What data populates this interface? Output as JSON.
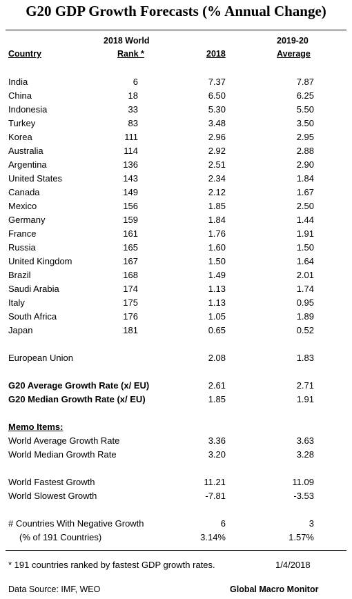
{
  "title": "G20 GDP Growth Forecasts  (% Annual Change)",
  "headers": {
    "rank_line1": "2018 World",
    "rank_line2": "Rank *",
    "country": "Country",
    "col2018": "2018",
    "avg_line1": "2019-20",
    "avg_line2": "Average"
  },
  "rows": [
    {
      "country": "India",
      "rank": "6",
      "y2018": "7.37",
      "avg": "7.87"
    },
    {
      "country": "China",
      "rank": "18",
      "y2018": "6.50",
      "avg": "6.25"
    },
    {
      "country": "Indonesia",
      "rank": "33",
      "y2018": "5.30",
      "avg": "5.50"
    },
    {
      "country": "Turkey",
      "rank": "83",
      "y2018": "3.48",
      "avg": "3.50"
    },
    {
      "country": "Korea",
      "rank": "111",
      "y2018": "2.96",
      "avg": "2.95"
    },
    {
      "country": "Australia",
      "rank": "114",
      "y2018": "2.92",
      "avg": "2.88"
    },
    {
      "country": "Argentina",
      "rank": "136",
      "y2018": "2.51",
      "avg": "2.90"
    },
    {
      "country": "United States",
      "rank": "143",
      "y2018": "2.34",
      "avg": "1.84"
    },
    {
      "country": "Canada",
      "rank": "149",
      "y2018": "2.12",
      "avg": "1.67"
    },
    {
      "country": "Mexico",
      "rank": "156",
      "y2018": "1.85",
      "avg": "2.50"
    },
    {
      "country": "Germany",
      "rank": "159",
      "y2018": "1.84",
      "avg": "1.44"
    },
    {
      "country": "France",
      "rank": "161",
      "y2018": "1.76",
      "avg": "1.91"
    },
    {
      "country": "Russia",
      "rank": "165",
      "y2018": "1.60",
      "avg": "1.50"
    },
    {
      "country": "United Kingdom",
      "rank": "167",
      "y2018": "1.50",
      "avg": "1.64"
    },
    {
      "country": "Brazil",
      "rank": "168",
      "y2018": "1.49",
      "avg": "2.01"
    },
    {
      "country": "Saudi Arabia",
      "rank": "174",
      "y2018": "1.13",
      "avg": "1.74"
    },
    {
      "country": "Italy",
      "rank": "175",
      "y2018": "1.13",
      "avg": "0.95"
    },
    {
      "country": "South Africa",
      "rank": "176",
      "y2018": "1.05",
      "avg": "1.89"
    },
    {
      "country": "Japan",
      "rank": "181",
      "y2018": "0.65",
      "avg": "0.52"
    }
  ],
  "eu": {
    "label": "European Union",
    "y2018": "2.08",
    "avg": "1.83"
  },
  "g20_avg": {
    "label": "G20 Average Growth Rate (x/ EU)",
    "y2018": "2.61",
    "avg": "2.71"
  },
  "g20_median": {
    "label": "G20 Median Growth Rate (x/ EU)",
    "y2018": "1.85",
    "avg": "1.91"
  },
  "memo_label": "Memo Items:",
  "world_avg": {
    "label": "World Average Growth Rate",
    "y2018": "3.36",
    "avg": "3.63"
  },
  "world_median": {
    "label": "World Median Growth Rate",
    "y2018": "3.20",
    "avg": "3.28"
  },
  "world_fastest": {
    "label": "World Fastest Growth",
    "y2018": "11.21",
    "avg": "11.09"
  },
  "world_slowest": {
    "label": "World Slowest Growth",
    "y2018": "-7.81",
    "avg": "-3.53"
  },
  "neg_count": {
    "label": "# Countries With Negative Growth",
    "y2018": "6",
    "avg": "3"
  },
  "neg_pct": {
    "label": "(% of 191 Countries)",
    "y2018": "3.14%",
    "avg": "1.57%"
  },
  "footnote": "* 191 countries ranked by fastest GDP growth rates.",
  "date": "1/4/2018",
  "source": "Data Source:  IMF, WEO",
  "brand": "Global Macro Monitor"
}
